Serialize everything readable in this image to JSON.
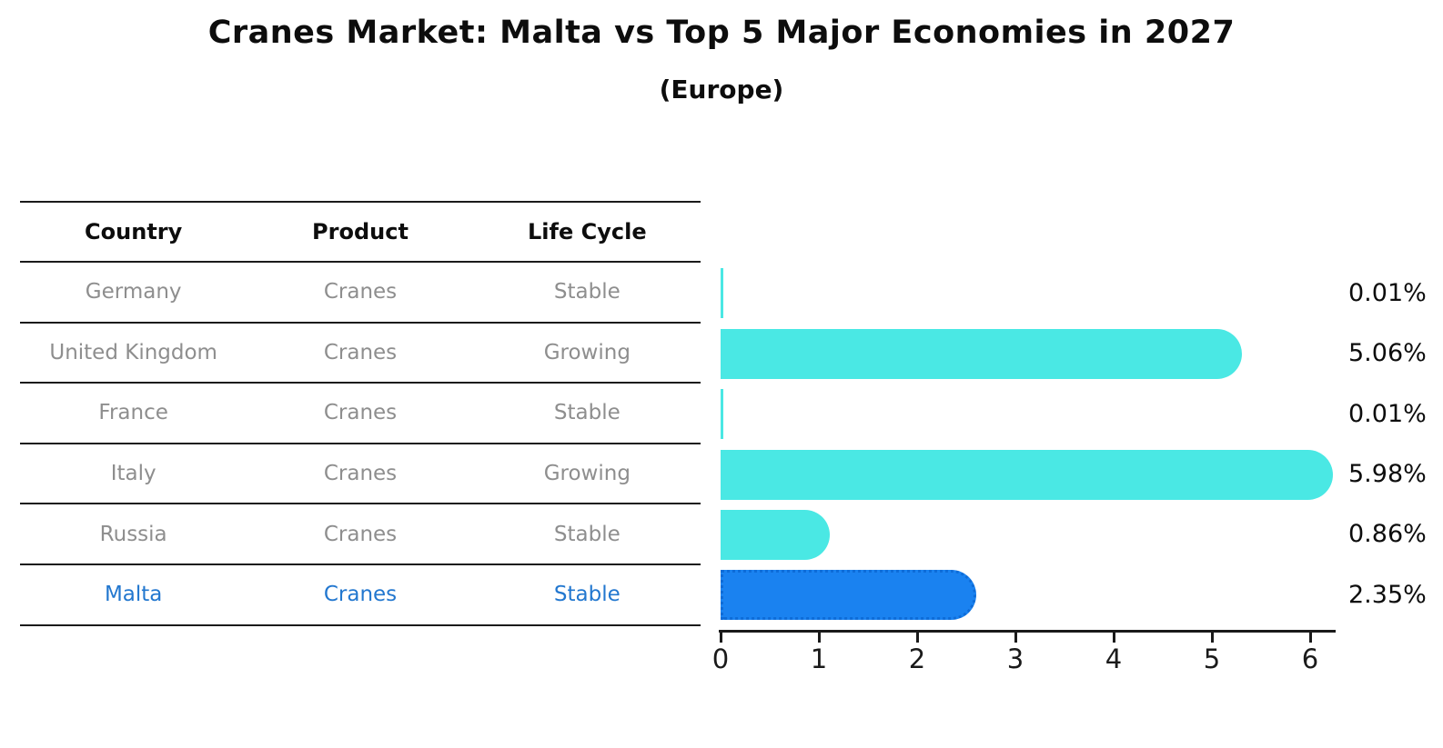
{
  "page": {
    "title": "Cranes Market: Malta vs Top 5 Major Economies in 2027",
    "subtitle": "(Europe)"
  },
  "table": {
    "headers": [
      "Country",
      "Product",
      "Life Cycle"
    ],
    "rows": [
      {
        "country": "Germany",
        "product": "Cranes",
        "life_cycle": "Stable",
        "highlight": false
      },
      {
        "country": "United Kingdom",
        "product": "Cranes",
        "life_cycle": "Growing",
        "highlight": false
      },
      {
        "country": "France",
        "product": "Cranes",
        "life_cycle": "Stable",
        "highlight": false
      },
      {
        "country": "Italy",
        "product": "Cranes",
        "life_cycle": "Growing",
        "highlight": false
      },
      {
        "country": "Russia",
        "product": "Cranes",
        "life_cycle": "Stable",
        "highlight": false
      },
      {
        "country": "Malta",
        "product": "Cranes",
        "life_cycle": "Stable",
        "highlight": true
      }
    ]
  },
  "chart_data": {
    "type": "bar",
    "orientation": "horizontal",
    "title": "Cranes Market: Malta vs Top 5 Major Economies in 2027",
    "subtitle": "(Europe)",
    "categories": [
      "Germany",
      "United Kingdom",
      "France",
      "Italy",
      "Russia",
      "Malta"
    ],
    "values": [
      0.01,
      5.06,
      0.01,
      5.98,
      0.86,
      2.35
    ],
    "value_labels": [
      "0.01%",
      "5.06%",
      "0.01%",
      "5.98%",
      "0.86%",
      "2.35%"
    ],
    "unit": "%",
    "highlight_category": "Malta",
    "xticks": [
      0,
      1,
      2,
      3,
      4,
      5,
      6
    ],
    "xlim": [
      0,
      6.28
    ],
    "grid": false,
    "legend": "none",
    "colors": {
      "bar_default": "#4ae8e4",
      "bar_highlight": "#1a82f0",
      "bar_highlight_border": "#0e6cd8",
      "highlight_text": "#2277cf",
      "row_text": "#8e8e8e",
      "header_text": "#0d0d0d",
      "axis": "#1a1a1a",
      "value_label_text": "#0d0d0d"
    }
  }
}
